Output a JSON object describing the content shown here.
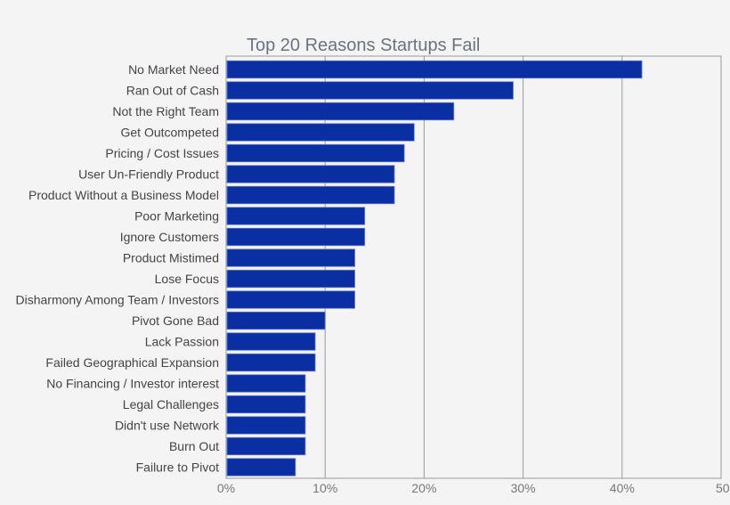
{
  "chart_data": {
    "type": "bar",
    "orientation": "horizontal",
    "title": "Top 20 Reasons Startups Fail",
    "xlabel": "",
    "ylabel": "",
    "categories": [
      "No Market Need",
      "Ran Out of Cash",
      "Not the Right Team",
      "Get Outcompeted",
      "Pricing / Cost Issues",
      "User Un-Friendly Product",
      "Product Without a Business Model",
      "Poor Marketing",
      "Ignore Customers",
      "Product Mistimed",
      "Lose Focus",
      "Disharmony Among Team / Investors",
      "Pivot Gone Bad",
      "Lack Passion",
      "Failed Geographical Expansion",
      "No Financing / Investor interest",
      "Legal Challenges",
      "Didn't use Network",
      "Burn Out",
      "Failure to Pivot"
    ],
    "values": [
      42,
      29,
      23,
      19,
      18,
      17,
      17,
      14,
      14,
      13,
      13,
      13,
      10,
      9,
      9,
      8,
      8,
      8,
      8,
      7
    ],
    "xlim": [
      0,
      50
    ],
    "x_ticks": [
      "0%",
      "10%",
      "20%",
      "30%",
      "40%",
      "50"
    ],
    "grid": "vertical",
    "bar_color": "#0a2fa3",
    "bar_edge_color": "#6a7ad0",
    "legend": "none"
  }
}
